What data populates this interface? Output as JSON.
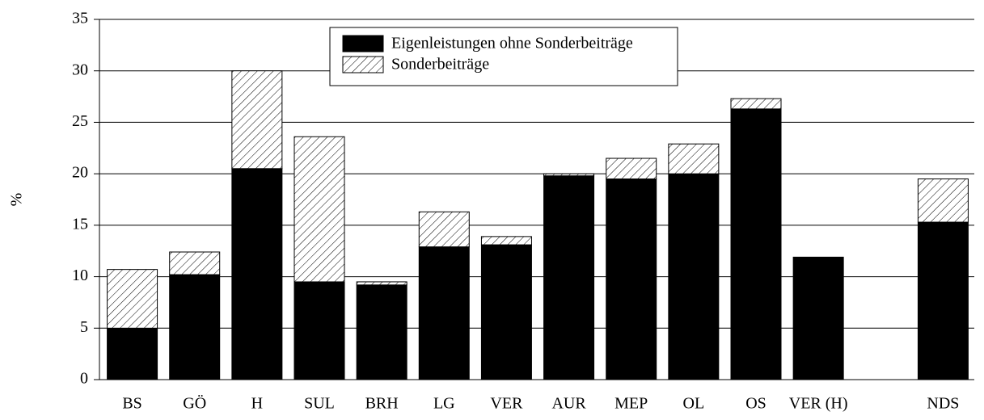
{
  "chart_data": {
    "type": "stacked_bar",
    "ylabel": "%",
    "categories": [
      "BS",
      "GÖ",
      "H",
      "SUL",
      "BRH",
      "LG",
      "VER",
      "AUR",
      "MEP",
      "OL",
      "OS",
      "VER (H)",
      null,
      "NDS"
    ],
    "series": [
      {
        "name": "Eigenleistungen ohne Sonderbeiträge",
        "color": "#000000",
        "values": [
          5.0,
          10.2,
          20.5,
          9.5,
          9.2,
          12.9,
          13.1,
          19.8,
          19.5,
          20.0,
          26.3,
          11.9,
          null,
          15.3
        ]
      },
      {
        "name": "Sonderbeiträge",
        "color": "#ffffff",
        "pattern": "hatch",
        "values": [
          5.7,
          2.2,
          9.5,
          14.1,
          0.3,
          3.4,
          0.8,
          0.2,
          2.0,
          2.9,
          1.0,
          0,
          null,
          4.2
        ]
      }
    ],
    "ylim": [
      0,
      35
    ],
    "yticks": [
      0,
      5,
      10,
      15,
      20,
      25,
      30,
      35
    ],
    "grid": true,
    "legend": "upper center"
  }
}
